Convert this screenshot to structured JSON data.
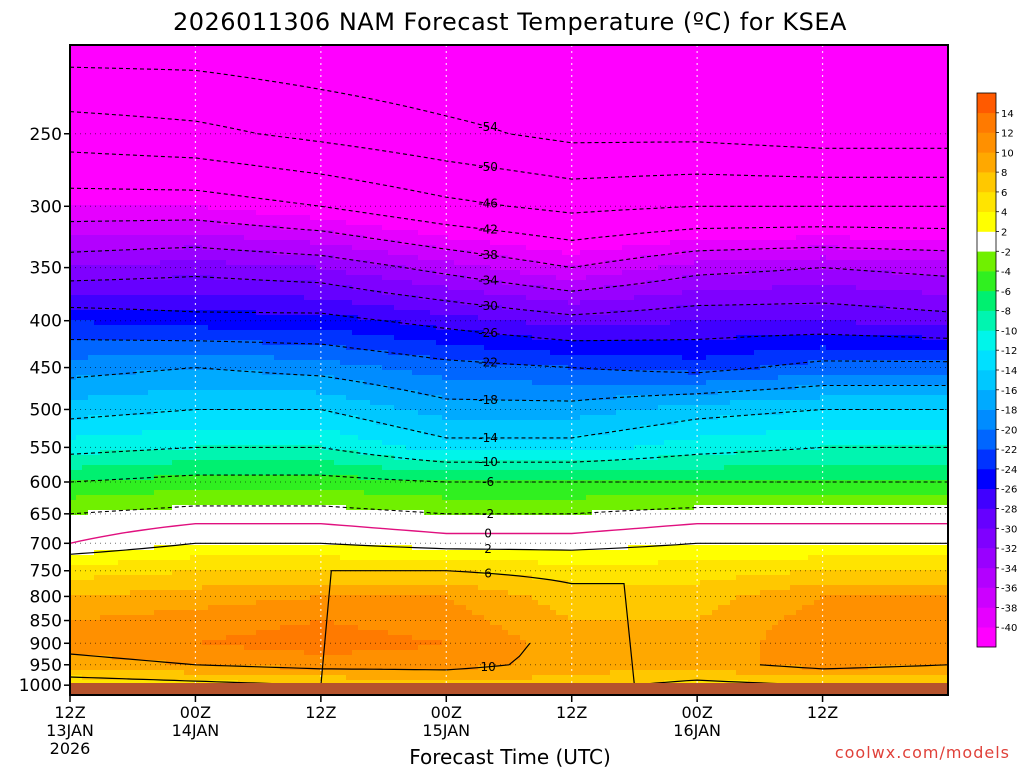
{
  "title": "2026011306 NAM Forecast Temperature (ºC) for KSEA",
  "credit": "coolwx.com/models",
  "colors": {
    "credit": "#e0413a",
    "freezing_line": "#e0107f",
    "ground": "#b5532d"
  },
  "chart_data": {
    "type": "heatmap",
    "title": "2026011306 NAM Forecast Temperature (ºC) for KSEA",
    "xlabel": "Forecast Time (UTC)",
    "ylabel": "",
    "x_ticks": [
      {
        "hour": 6,
        "label": "12Z",
        "sub1": "13JAN",
        "sub2": "2026"
      },
      {
        "hour": 18,
        "label": "00Z",
        "sub1": "14JAN",
        "sub2": ""
      },
      {
        "hour": 30,
        "label": "12Z",
        "sub1": "",
        "sub2": ""
      },
      {
        "hour": 42,
        "label": "00Z",
        "sub1": "15JAN",
        "sub2": ""
      },
      {
        "hour": 54,
        "label": "12Z",
        "sub1": "",
        "sub2": ""
      },
      {
        "hour": 66,
        "label": "00Z",
        "sub1": "16JAN",
        "sub2": ""
      },
      {
        "hour": 78,
        "label": "12Z",
        "sub1": "",
        "sub2": ""
      }
    ],
    "xlim": [
      6,
      90
    ],
    "y_ticks": [
      250,
      300,
      350,
      400,
      450,
      500,
      550,
      600,
      650,
      700,
      750,
      800,
      850,
      900,
      950,
      1000
    ],
    "ylim": [
      1025,
      200
    ],
    "y_scale": "log",
    "grid": true,
    "colorbar": {
      "levels": [
        -40,
        -38,
        -36,
        -34,
        -32,
        -30,
        -28,
        -26,
        -24,
        -22,
        -20,
        -18,
        -16,
        -14,
        -12,
        -10,
        -8,
        -6,
        -4,
        -2,
        2,
        4,
        6,
        8,
        10,
        12,
        14
      ],
      "colors": [
        "#ff00ff",
        "#e600ff",
        "#cc00ff",
        "#b300ff",
        "#9900ff",
        "#7f00ff",
        "#6600ff",
        "#4000ff",
        "#0000ff",
        "#0033ff",
        "#0066ff",
        "#008cff",
        "#00aaff",
        "#00c8ff",
        "#00e0ff",
        "#00f5ea",
        "#00f5b0",
        "#00f070",
        "#30f020",
        "#70f000",
        "#ffffff",
        "#ffff00",
        "#ffe400",
        "#ffc800",
        "#ffa800",
        "#ff9000",
        "#ff7a00",
        "#ff5a00"
      ]
    },
    "levels_p": [
      1000,
      950,
      900,
      850,
      800,
      750,
      700,
      650,
      600,
      550,
      500,
      450,
      400,
      350,
      300,
      250,
      200
    ],
    "time_knots": [
      6,
      18,
      30,
      42,
      54,
      66,
      78,
      90
    ],
    "temperature_profile": {
      "1000": [
        4,
        5,
        6,
        7,
        7,
        5,
        6,
        6
      ],
      "950": [
        9,
        10,
        11,
        11,
        9,
        9,
        11,
        10
      ],
      "900": [
        11,
        12,
        13,
        12,
        9,
        8,
        12,
        12
      ],
      "850": [
        10,
        11,
        12,
        11,
        8,
        8,
        11,
        11
      ],
      "800": [
        8,
        9,
        10,
        10,
        7,
        7,
        10,
        10
      ],
      "750": [
        5,
        6,
        6,
        6,
        5,
        5,
        6,
        6
      ],
      "700": [
        0,
        2,
        2,
        1,
        1,
        2,
        2,
        2
      ],
      "650": [
        -2,
        -1,
        -1,
        -2,
        -2,
        -1,
        -1,
        -1
      ],
      "600": [
        -6,
        -5,
        -5,
        -6,
        -6,
        -6,
        -6,
        -6
      ],
      "550": [
        -11,
        -10,
        -10,
        -13,
        -13,
        -11,
        -10,
        -10
      ],
      "500": [
        -15,
        -14,
        -14,
        -17,
        -17,
        -15,
        -14,
        -14
      ],
      "450": [
        -19,
        -18,
        -19,
        -21,
        -22,
        -23,
        -21,
        -21
      ],
      "400": [
        -24,
        -25,
        -25,
        -27,
        -29,
        -28,
        -28,
        -29
      ],
      "350": [
        -32,
        -31,
        -32,
        -35,
        -38,
        -35,
        -34,
        -35
      ],
      "300": [
        -40,
        -40,
        -42,
        -45,
        -47,
        -46,
        -46,
        -46
      ],
      "250": [
        -48,
        -49,
        -51,
        -53,
        -55,
        -55,
        -56,
        -56
      ],
      "200": [
        -56,
        -56,
        -57,
        -58,
        -58,
        -59,
        -60,
        -60
      ]
    },
    "contour_levels_dashed": [
      -54,
      -50,
      -46,
      -42,
      -38,
      -34,
      -30,
      -26,
      -22,
      -18,
      -14,
      -10,
      -6,
      -2
    ],
    "contour_levels_solid": [
      2,
      6,
      10
    ],
    "freezing_level": 0
  }
}
